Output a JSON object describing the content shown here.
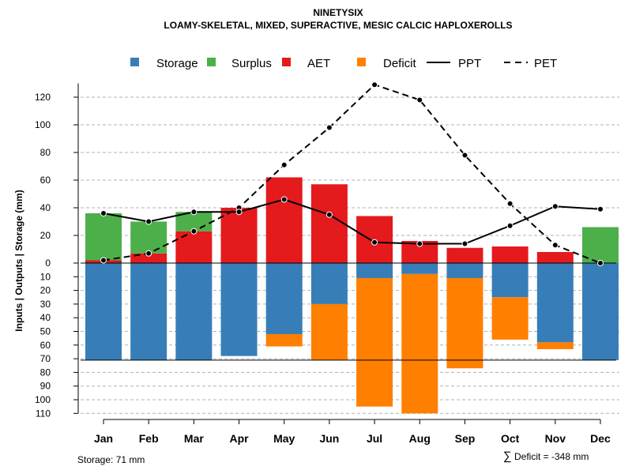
{
  "chart_data": {
    "type": "bar",
    "title": "NINETYSIX",
    "subtitle": "LOAMY-SKELETAL, MIXED, SUPERACTIVE, MESIC CALCIC HAPLOXEROLLS",
    "ylabel": "Inputs | Outputs | Storage     (mm)",
    "categories": [
      "Jan",
      "Feb",
      "Mar",
      "Apr",
      "May",
      "Jun",
      "Jul",
      "Aug",
      "Sep",
      "Oct",
      "Nov",
      "Dec"
    ],
    "positive_axis": {
      "ylim": [
        0,
        130
      ],
      "ticks": [
        0,
        20,
        40,
        60,
        80,
        100,
        120
      ]
    },
    "negative_axis": {
      "ylim": [
        0,
        110
      ],
      "ticks": [
        10,
        20,
        30,
        40,
        50,
        60,
        70,
        80,
        90,
        100,
        110
      ]
    },
    "series": [
      {
        "name": "Storage",
        "color": "#377EB8",
        "direction": "down",
        "values": [
          71,
          71,
          71,
          68,
          52,
          30,
          11,
          8,
          11,
          25,
          58,
          71
        ]
      },
      {
        "name": "Deficit",
        "color": "#FF7F00",
        "direction": "down",
        "values": [
          0,
          0,
          0,
          0,
          9,
          41,
          94,
          102,
          66,
          31,
          5,
          0
        ]
      },
      {
        "name": "AET",
        "color": "#E41A1C",
        "direction": "up",
        "values": [
          2,
          7,
          23,
          40,
          62,
          57,
          34,
          16,
          11,
          12,
          8,
          0
        ]
      },
      {
        "name": "Surplus",
        "color": "#4DAF4A",
        "direction": "up",
        "values": [
          34,
          23,
          14,
          0,
          0,
          0,
          0,
          0,
          0,
          0,
          0,
          26
        ]
      },
      {
        "name": "PPT",
        "style": "solid",
        "color": "#000000",
        "values": [
          36,
          30,
          37,
          37,
          46,
          35,
          15,
          14,
          14,
          27,
          41,
          39
        ]
      },
      {
        "name": "PET",
        "style": "dashed",
        "color": "#000000",
        "values": [
          2,
          7,
          23,
          40,
          71,
          98,
          129,
          118,
          78,
          43,
          13,
          0
        ]
      }
    ],
    "storage_capacity": 71,
    "grid": true,
    "legend_position": "top"
  },
  "legend": [
    {
      "label": "Storage",
      "color": "#377EB8",
      "kind": "box"
    },
    {
      "label": "Surplus",
      "color": "#4DAF4A",
      "kind": "box"
    },
    {
      "label": "AET",
      "color": "#E41A1C",
      "kind": "box"
    },
    {
      "label": "Deficit",
      "color": "#FF7F00",
      "kind": "box"
    },
    {
      "label": "PPT",
      "color": "#000000",
      "kind": "solid"
    },
    {
      "label": "PET",
      "color": "#000000",
      "kind": "dashed"
    }
  ],
  "footer": {
    "storage_text": "Storage: 71 mm",
    "deficit_symbol": "∑",
    "deficit_text": "Deficit = -348 mm"
  }
}
